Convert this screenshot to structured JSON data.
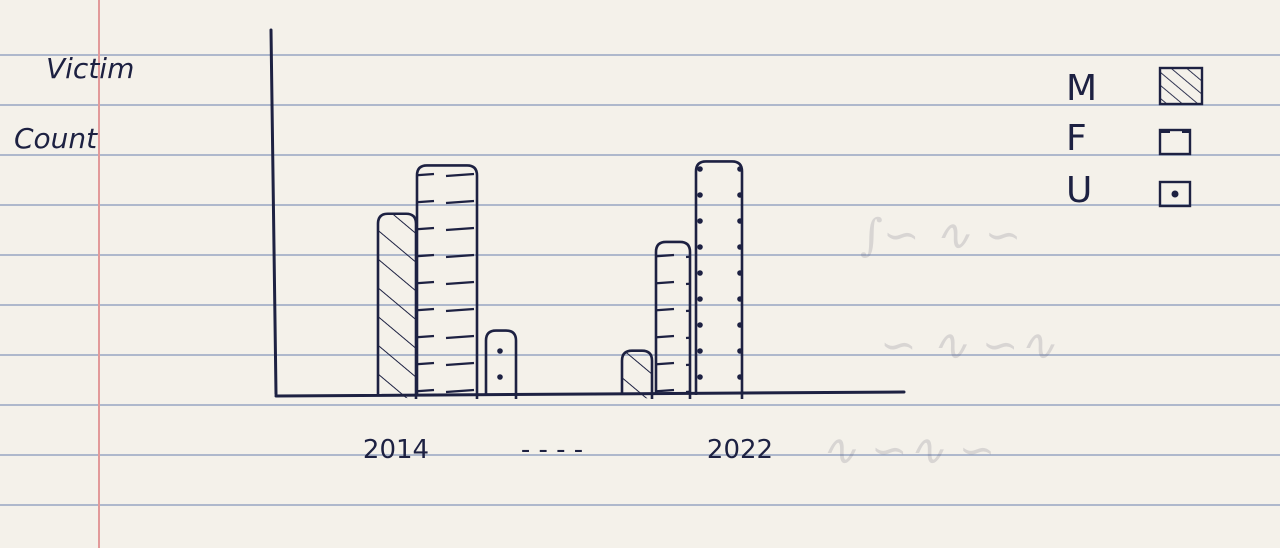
{
  "chart_data": {
    "type": "bar",
    "ylabel": "Victim\nCount",
    "xlabel": "",
    "categories": [
      "2014",
      "2022"
    ],
    "x_axis_gap_text": "- - - -",
    "series": [
      {
        "name": "M",
        "pattern": "diagonal-hatch",
        "values": [
          45,
          11
        ]
      },
      {
        "name": "F",
        "pattern": "horizontal-dash",
        "values": [
          57,
          38
        ]
      },
      {
        "name": "U",
        "pattern": "dots",
        "values": [
          16,
          58
        ]
      }
    ],
    "ylim": [
      0,
      72
    ],
    "grid": false,
    "legend_position": "top-right"
  },
  "colors": {
    "ink": "#1d2142",
    "paper": "#f4f1ea",
    "rule_line": "#aeb8cc",
    "margin_line": "#e29a9a"
  }
}
